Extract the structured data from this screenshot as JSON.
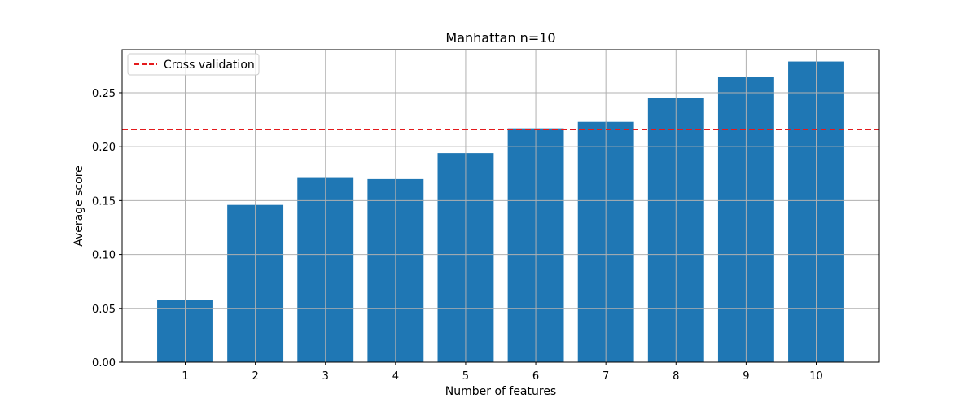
{
  "chart_data": {
    "type": "bar",
    "title": "Manhattan n=10",
    "xlabel": "Number of features",
    "ylabel": "Average score",
    "categories": [
      "1",
      "2",
      "3",
      "4",
      "5",
      "6",
      "7",
      "8",
      "9",
      "10"
    ],
    "values": [
      0.058,
      0.146,
      0.171,
      0.17,
      0.194,
      0.217,
      0.223,
      0.245,
      0.265,
      0.279
    ],
    "ylim": [
      0,
      0.29
    ],
    "yticks": [
      "0.00",
      "0.05",
      "0.10",
      "0.15",
      "0.20",
      "0.25"
    ],
    "grid": true,
    "bar_color": "#1f77b4",
    "reference_line": {
      "name": "Cross validation",
      "value": 0.216,
      "color": "#e41a1c",
      "style": "dashed"
    },
    "legend_position": "top-left"
  }
}
